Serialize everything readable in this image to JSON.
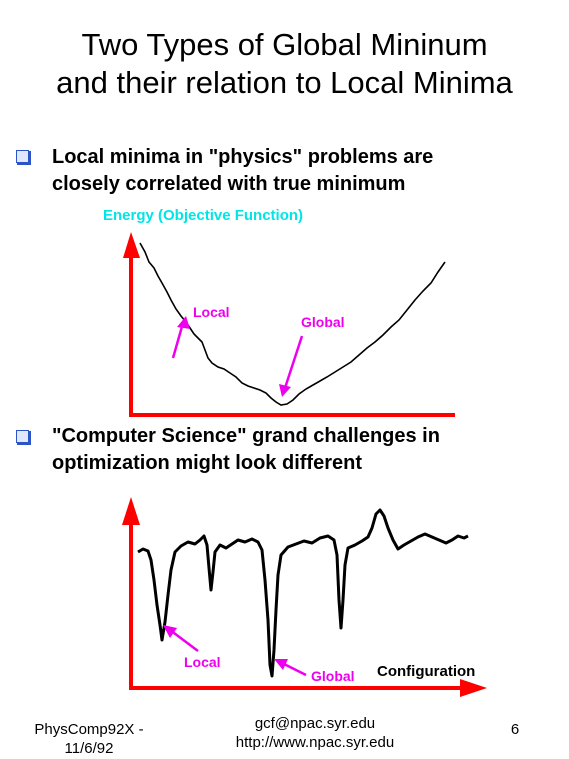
{
  "title": {
    "line1": "Two Types of Global Mininum",
    "line2": "and their relation to Local Minima"
  },
  "bullets": [
    {
      "line1": "Local minima in \"physics\" problems are",
      "line2": "closely correlated with true minimum"
    },
    {
      "line1": "\"Computer Science\" grand challenges in",
      "line2": "optimization might look different"
    }
  ],
  "diagram1": {
    "ylabel": "Energy (Objective Function)",
    "local_label": "Local",
    "global_label": "Global"
  },
  "diagram2": {
    "local_label": "Local",
    "global_label": "Global",
    "xlabel": "Configuration"
  },
  "footer": {
    "left_line1": "PhysComp92X -",
    "left_line2": "11/6/92",
    "center_line1": "gcf@npac.syr.edu",
    "center_line2": "http://www.npac.syr.edu",
    "page_number": "6"
  },
  "colors": {
    "axis": "#ff0000",
    "annotation": "#ee00ee",
    "ylabel": "#00e5e5",
    "bullet": "#2a54c8",
    "curve": "#000000"
  }
}
